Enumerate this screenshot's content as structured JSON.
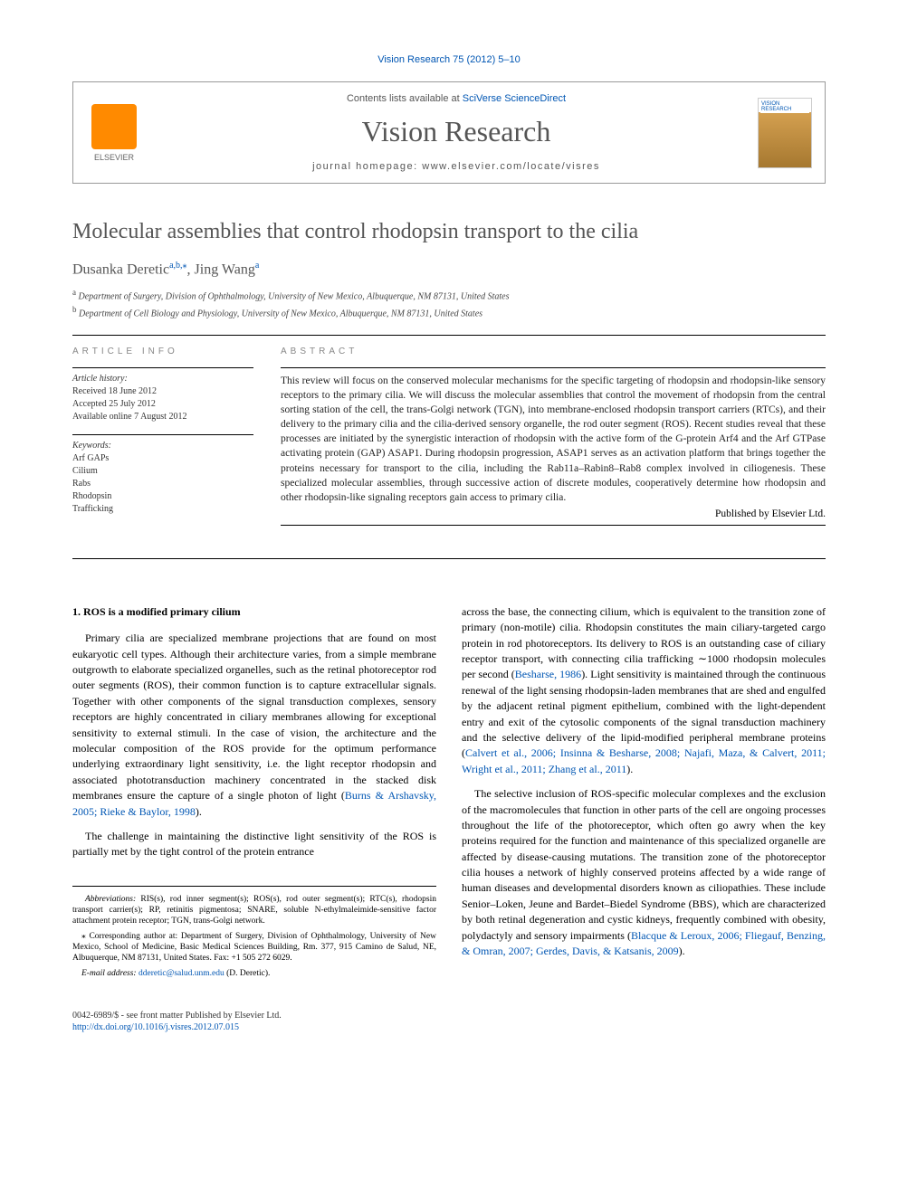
{
  "citation": "Vision Research 75 (2012) 5–10",
  "contents_prefix": "Contents lists available at ",
  "contents_link": "SciVerse ScienceDirect",
  "journal_name": "Vision Research",
  "homepage_prefix": "journal homepage: ",
  "homepage_url": "www.elsevier.com/locate/visres",
  "publisher": "ELSEVIER",
  "cover_label": "VISION RESEARCH",
  "title": "Molecular assemblies that control rhodopsin transport to the cilia",
  "author1": "Dusanka Deretic",
  "author1_sup": "a,b,",
  "author2": "Jing Wang",
  "author2_sup": "a",
  "aff_a": "Department of Surgery, Division of Ophthalmology, University of New Mexico, Albuquerque, NM 87131, United States",
  "aff_b": "Department of Cell Biology and Physiology, University of New Mexico, Albuquerque, NM 87131, United States",
  "info_heading": "ARTICLE INFO",
  "abstract_heading": "ABSTRACT",
  "history_label": "Article history:",
  "history": "Received 18 June 2012\nAccepted 25 July 2012\nAvailable online 7 August 2012",
  "keywords_label": "Keywords:",
  "keywords": "Arf GAPs\nCilium\nRabs\nRhodopsin\nTrafficking",
  "abstract": "This review will focus on the conserved molecular mechanisms for the specific targeting of rhodopsin and rhodopsin-like sensory receptors to the primary cilia. We will discuss the molecular assemblies that control the movement of rhodopsin from the central sorting station of the cell, the trans-Golgi network (TGN), into membrane-enclosed rhodopsin transport carriers (RTCs), and their delivery to the primary cilia and the cilia-derived sensory organelle, the rod outer segment (ROS). Recent studies reveal that these processes are initiated by the synergistic interaction of rhodopsin with the active form of the G-protein Arf4 and the Arf GTPase activating protein (GAP) ASAP1. During rhodopsin progression, ASAP1 serves as an activation platform that brings together the proteins necessary for transport to the cilia, including the Rab11a–Rabin8–Rab8 complex involved in ciliogenesis. These specialized molecular assemblies, through successive action of discrete modules, cooperatively determine how rhodopsin and other rhodopsin-like signaling receptors gain access to primary cilia.",
  "pub_line": "Published by Elsevier Ltd.",
  "section1_heading": "1. ROS is a modified primary cilium",
  "col1_p1": "Primary cilia are specialized membrane projections that are found on most eukaryotic cell types. Although their architecture varies, from a simple membrane outgrowth to elaborate specialized organelles, such as the retinal photoreceptor rod outer segments (ROS), their common function is to capture extracellular signals. Together with other components of the signal transduction complexes, sensory receptors are highly concentrated in ciliary membranes allowing for exceptional sensitivity to external stimuli. In the case of vision, the architecture and the molecular composition of the ROS provide for the optimum performance underlying extraordinary light sensitivity, i.e. the light receptor rhodopsin and associated phototransduction machinery concentrated in the stacked disk membranes ensure the capture of a single photon of light (",
  "col1_p1_ref": "Burns & Arshavsky, 2005; Rieke & Baylor, 1998",
  "col1_p1_end": ").",
  "col1_p2": "The challenge in maintaining the distinctive light sensitivity of the ROS is partially met by the tight control of the protein entrance",
  "col2_p1a": "across the base, the connecting cilium, which is equivalent to the transition zone of primary (non-motile) cilia. Rhodopsin constitutes the main ciliary-targeted cargo protein in rod photoreceptors. Its delivery to ROS is an outstanding case of ciliary receptor transport, with connecting cilia trafficking ∼1000 rhodopsin molecules per second (",
  "col2_p1_ref1": "Besharse, 1986",
  "col2_p1b": "). Light sensitivity is maintained through the continuous renewal of the light sensing rhodopsin-laden membranes that are shed and engulfed by the adjacent retinal pigment epithelium, combined with the light-dependent entry and exit of the cytosolic components of the signal transduction machinery and the selective delivery of the lipid-modified peripheral membrane proteins (",
  "col2_p1_ref2": "Calvert et al., 2006; Insinna & Besharse, 2008; Najafi, Maza, & Calvert, 2011; Wright et al., 2011; Zhang et al., 2011",
  "col2_p1c": ").",
  "col2_p2a": "The selective inclusion of ROS-specific molecular complexes and the exclusion of the macromolecules that function in other parts of the cell are ongoing processes throughout the life of the photoreceptor, which often go awry when the key proteins required for the function and maintenance of this specialized organelle are affected by disease-causing mutations. The transition zone of the photoreceptor cilia houses a network of highly conserved proteins affected by a wide range of human diseases and developmental disorders known as ciliopathies. These include Senior–Loken, Jeune and Bardet–Biedel Syndrome (BBS), which are characterized by both retinal degeneration and cystic kidneys, frequently combined with obesity, polydactyly and sensory impairments (",
  "col2_p2_ref": "Blacque & Leroux, 2006; Fliegauf, Benzing, & Omran, 2007; Gerdes, Davis, & Katsanis, 2009",
  "col2_p2b": ").",
  "abbrev_label": "Abbreviations:",
  "abbrev": " RIS(s), rod inner segment(s); ROS(s), rod outer segment(s); RTC(s), rhodopsin transport carrier(s); RP, retinitis pigmentosa; SNARE, soluble N-ethylmaleimide-sensitive factor attachment protein receptor; TGN, trans-Golgi network.",
  "corr_label": "⁎ Corresponding author at: ",
  "corr": "Department of Surgery, Division of Ophthalmology, University of New Mexico, School of Medicine, Basic Medical Sciences Building, Rm. 377, 915 Camino de Salud, NE, Albuquerque, NM 87131, United States. Fax: +1 505 272 6029.",
  "email_label": "E-mail address: ",
  "email": "dderetic@salud.unm.edu",
  "email_suffix": " (D. Deretic).",
  "footer_issn": "0042-6989/$ - see front matter Published by Elsevier Ltd.",
  "footer_doi": "http://dx.doi.org/10.1016/j.visres.2012.07.015",
  "colors": {
    "link": "#0056b3",
    "heading_gray": "#555555",
    "orange": "#ff8a00",
    "text": "#222222"
  }
}
